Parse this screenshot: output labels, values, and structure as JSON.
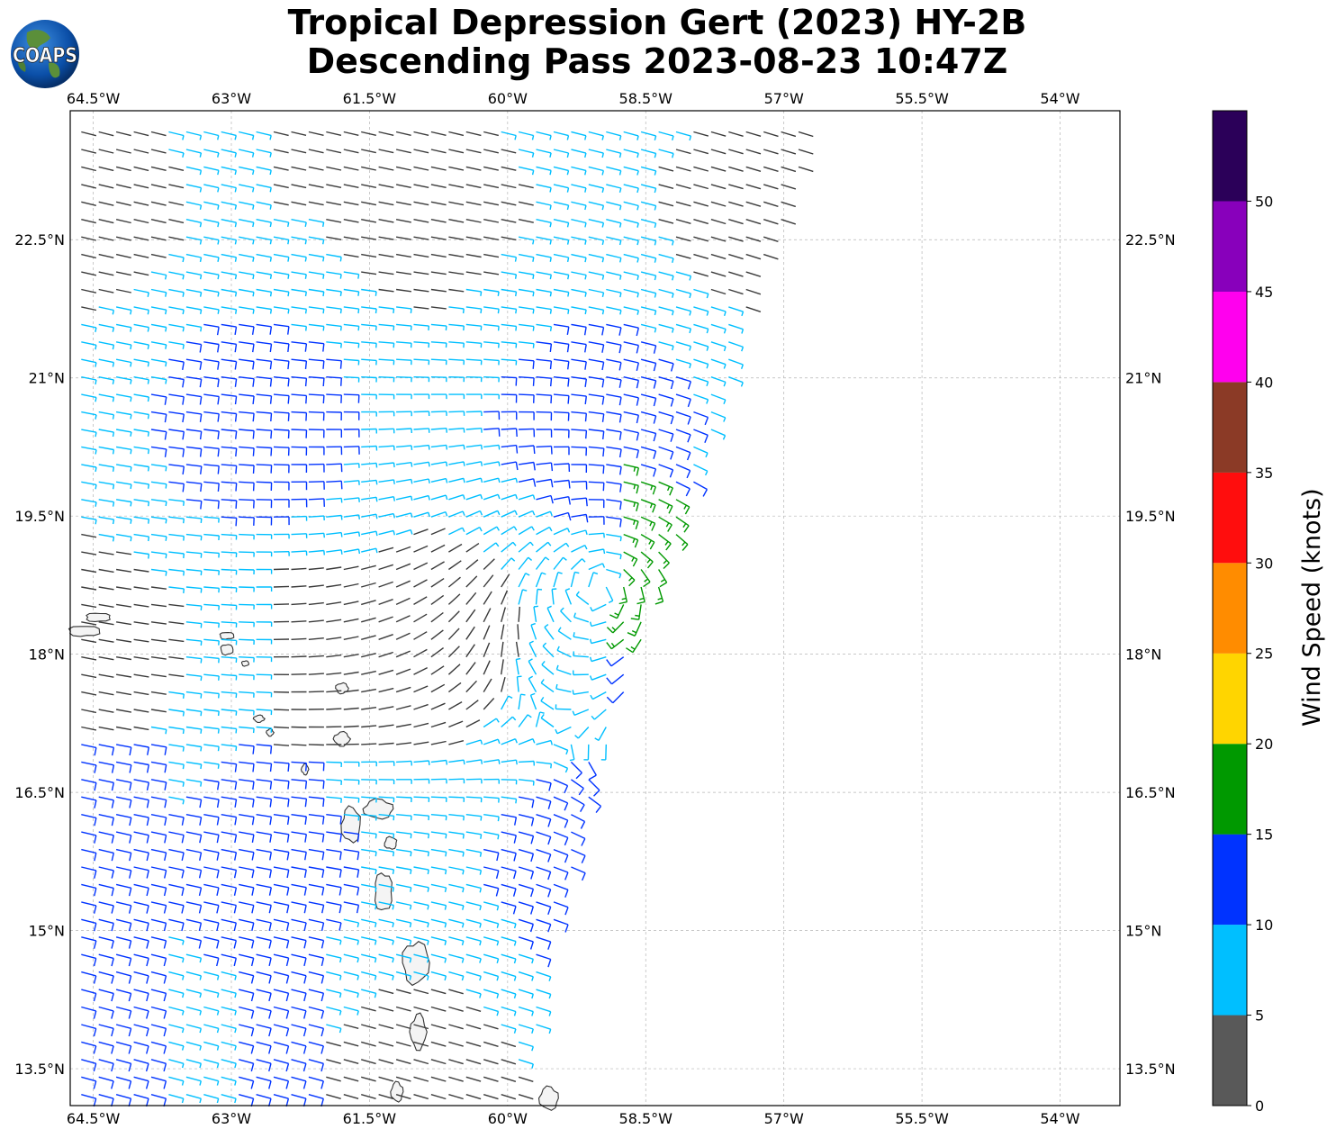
{
  "title": {
    "line1": "Tropical Depression Gert (2023) HY-2B",
    "line2": "Descending Pass 2023-08-23 10:47Z"
  },
  "logo": {
    "text": "COAPS",
    "icon": "globe-logo-icon"
  },
  "map": {
    "lon_range": [
      -64.75,
      -53.35
    ],
    "lat_range": [
      13.1,
      23.9
    ],
    "lon_ticks": [
      {
        "value": -64.5,
        "label": "64.5°W"
      },
      {
        "value": -63.0,
        "label": "63°W"
      },
      {
        "value": -61.5,
        "label": "61.5°W"
      },
      {
        "value": -60.0,
        "label": "60°W"
      },
      {
        "value": -58.5,
        "label": "58.5°W"
      },
      {
        "value": -57.0,
        "label": "57°W"
      },
      {
        "value": -55.5,
        "label": "55.5°W"
      },
      {
        "value": -54.0,
        "label": "54°W"
      }
    ],
    "lat_ticks": [
      {
        "value": 22.5,
        "label": "22.5°N"
      },
      {
        "value": 21.0,
        "label": "21°N"
      },
      {
        "value": 19.5,
        "label": "19.5°N"
      },
      {
        "value": 18.0,
        "label": "18°N"
      },
      {
        "value": 16.5,
        "label": "16.5°N"
      },
      {
        "value": 15.0,
        "label": "15°N"
      },
      {
        "value": 13.5,
        "label": "13.5°N"
      }
    ],
    "gridlines": true,
    "swath_east_edge": [
      [
        23.8,
        -56.6
      ],
      [
        22.0,
        -57.3
      ],
      [
        20.0,
        -57.9
      ],
      [
        18.5,
        -58.4
      ],
      [
        17.0,
        -58.9
      ],
      [
        15.0,
        -59.5
      ],
      [
        13.1,
        -59.8
      ]
    ],
    "storm_center": {
      "lat": 18.7,
      "lon": -59.0
    },
    "islands": [
      {
        "name": "Puerto Rico east",
        "lat": 18.25,
        "lon": -64.6
      },
      {
        "name": "Virgin Islands",
        "lat": 18.4,
        "lon": -64.45
      },
      {
        "name": "Anguilla",
        "lat": 18.2,
        "lon": -63.05
      },
      {
        "name": "St Martin",
        "lat": 18.05,
        "lon": -63.05
      },
      {
        "name": "St Barthelemy",
        "lat": 17.9,
        "lon": -62.85
      },
      {
        "name": "Barbuda",
        "lat": 17.63,
        "lon": -61.8
      },
      {
        "name": "Antigua",
        "lat": 17.08,
        "lon": -61.8
      },
      {
        "name": "St Kitts",
        "lat": 17.3,
        "lon": -62.7
      },
      {
        "name": "Nevis",
        "lat": 17.15,
        "lon": -62.58
      },
      {
        "name": "Montserrat",
        "lat": 16.75,
        "lon": -62.2
      },
      {
        "name": "Guadeloupe Basse-Terre",
        "lat": 16.15,
        "lon": -61.7
      },
      {
        "name": "Guadeloupe Grande-Terre",
        "lat": 16.32,
        "lon": -61.4
      },
      {
        "name": "Marie-Galante",
        "lat": 15.95,
        "lon": -61.27
      },
      {
        "name": "Dominica",
        "lat": 15.42,
        "lon": -61.35
      },
      {
        "name": "Martinique",
        "lat": 14.65,
        "lon": -61.0
      },
      {
        "name": "St Lucia",
        "lat": 13.9,
        "lon": -60.97
      },
      {
        "name": "St Vincent",
        "lat": 13.25,
        "lon": -61.2
      },
      {
        "name": "Barbados",
        "lat": 13.18,
        "lon": -59.55
      }
    ]
  },
  "colorbar": {
    "title": "Wind Speed (knots)",
    "bins": [
      {
        "min": 0,
        "max": 5,
        "color": "#595959"
      },
      {
        "min": 5,
        "max": 10,
        "color": "#00bfff"
      },
      {
        "min": 10,
        "max": 15,
        "color": "#0033ff"
      },
      {
        "min": 15,
        "max": 20,
        "color": "#009900"
      },
      {
        "min": 20,
        "max": 25,
        "color": "#ffd500"
      },
      {
        "min": 25,
        "max": 30,
        "color": "#ff8c00"
      },
      {
        "min": 30,
        "max": 35,
        "color": "#ff0d0d"
      },
      {
        "min": 35,
        "max": 40,
        "color": "#8b3a26"
      },
      {
        "min": 40,
        "max": 45,
        "color": "#ff00ee"
      },
      {
        "min": 45,
        "max": 50,
        "color": "#8800bb"
      },
      {
        "min": 50,
        "max": 55,
        "color": "#2b0059"
      }
    ],
    "tick_labels": [
      "0",
      "5",
      "10",
      "15",
      "20",
      "25",
      "30",
      "35",
      "40",
      "45",
      "50"
    ]
  },
  "colors": {
    "calm": "#3a3a3a",
    "light": "#00bfff",
    "moderate": "#0033cc",
    "fresh": "#008800",
    "coast": "#333333",
    "land_fill": "#f4f4f4"
  }
}
